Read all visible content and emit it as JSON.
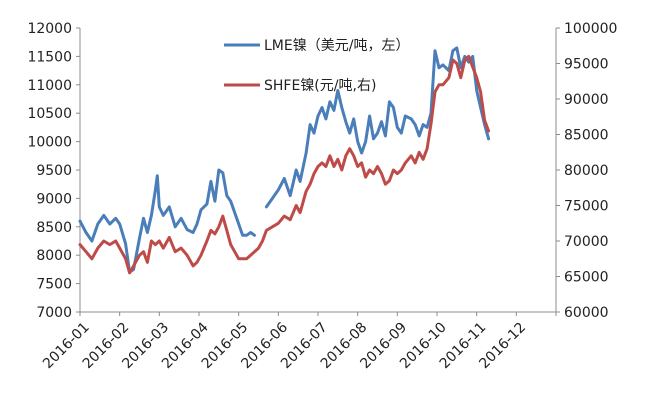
{
  "chart_data": {
    "type": "line",
    "title": "",
    "grid": false,
    "legend_placement": "top-center",
    "x_tick_labels": [
      "2016-01",
      "2016-02",
      "2016-03",
      "2016-04",
      "2016-05",
      "2016-06",
      "2016-07",
      "2016-08",
      "2016-09",
      "2016-10",
      "2016-11",
      "2016-12"
    ],
    "y_left": {
      "lim": [
        7000,
        12000
      ],
      "ticks": [
        7000,
        7500,
        8000,
        8500,
        9000,
        9500,
        10000,
        10500,
        11000,
        11500,
        12000
      ]
    },
    "y_right": {
      "lim": [
        60000,
        100000
      ],
      "ticks": [
        60000,
        65000,
        70000,
        75000,
        80000,
        85000,
        90000,
        95000,
        100000
      ]
    },
    "series": [
      {
        "name": "LME镍（美元/吨，左）",
        "axis": "left",
        "color": "#4a7ebb",
        "points": [
          [
            0.0,
            8600
          ],
          [
            0.15,
            8400
          ],
          [
            0.3,
            8250
          ],
          [
            0.45,
            8550
          ],
          [
            0.6,
            8700
          ],
          [
            0.75,
            8550
          ],
          [
            0.9,
            8650
          ],
          [
            1.0,
            8550
          ],
          [
            1.15,
            8200
          ],
          [
            1.25,
            7700
          ],
          [
            1.35,
            7750
          ],
          [
            1.5,
            8300
          ],
          [
            1.6,
            8650
          ],
          [
            1.7,
            8400
          ],
          [
            1.8,
            8700
          ],
          [
            1.9,
            9150
          ],
          [
            1.95,
            9400
          ],
          [
            2.0,
            8850
          ],
          [
            2.1,
            8700
          ],
          [
            2.25,
            8850
          ],
          [
            2.4,
            8500
          ],
          [
            2.55,
            8650
          ],
          [
            2.7,
            8450
          ],
          [
            2.85,
            8400
          ],
          [
            2.95,
            8550
          ],
          [
            3.05,
            8800
          ],
          [
            3.2,
            8900
          ],
          [
            3.3,
            9300
          ],
          [
            3.4,
            8950
          ],
          [
            3.5,
            9500
          ],
          [
            3.6,
            9450
          ],
          [
            3.7,
            9050
          ],
          [
            3.8,
            8950
          ],
          [
            3.9,
            8750
          ],
          [
            4.0,
            8550
          ],
          [
            4.1,
            8350
          ],
          [
            4.2,
            8350
          ],
          [
            4.3,
            8400
          ],
          [
            4.4,
            8350
          ],
          [
            4.7,
            8850
          ],
          [
            4.85,
            9000
          ],
          [
            5.0,
            9150
          ],
          [
            5.15,
            9350
          ],
          [
            5.3,
            9050
          ],
          [
            5.45,
            9500
          ],
          [
            5.55,
            9300
          ],
          [
            5.7,
            9800
          ],
          [
            5.8,
            10300
          ],
          [
            5.9,
            10150
          ],
          [
            6.0,
            10450
          ],
          [
            6.1,
            10600
          ],
          [
            6.2,
            10400
          ],
          [
            6.3,
            10700
          ],
          [
            6.4,
            10550
          ],
          [
            6.5,
            10900
          ],
          [
            6.6,
            10600
          ],
          [
            6.7,
            10350
          ],
          [
            6.8,
            10150
          ],
          [
            6.9,
            10400
          ],
          [
            7.0,
            10000
          ],
          [
            7.1,
            9800
          ],
          [
            7.2,
            10000
          ],
          [
            7.3,
            10450
          ],
          [
            7.4,
            10050
          ],
          [
            7.5,
            10150
          ],
          [
            7.6,
            10350
          ],
          [
            7.7,
            10100
          ],
          [
            7.8,
            10700
          ],
          [
            7.9,
            10600
          ],
          [
            8.0,
            10250
          ],
          [
            8.1,
            10150
          ],
          [
            8.2,
            10450
          ],
          [
            8.35,
            10400
          ],
          [
            8.45,
            10300
          ],
          [
            8.55,
            10100
          ],
          [
            8.65,
            10300
          ],
          [
            8.75,
            10250
          ],
          [
            8.85,
            10500
          ],
          [
            8.95,
            11600
          ],
          [
            9.05,
            11300
          ],
          [
            9.15,
            11350
          ],
          [
            9.3,
            11250
          ],
          [
            9.4,
            11600
          ],
          [
            9.5,
            11650
          ],
          [
            9.6,
            11300
          ],
          [
            9.7,
            11500
          ],
          [
            9.8,
            11400
          ],
          [
            9.9,
            11500
          ],
          [
            10.0,
            10900
          ],
          [
            10.1,
            10600
          ],
          [
            10.2,
            10300
          ],
          [
            10.3,
            10050
          ]
        ]
      },
      {
        "name": "SHFE镍(元/吨,右)",
        "axis": "right",
        "color": "#be4b48",
        "points": [
          [
            0.0,
            69500
          ],
          [
            0.15,
            68500
          ],
          [
            0.3,
            67500
          ],
          [
            0.45,
            69000
          ],
          [
            0.6,
            70000
          ],
          [
            0.75,
            69500
          ],
          [
            0.9,
            70000
          ],
          [
            1.0,
            69000
          ],
          [
            1.15,
            67500
          ],
          [
            1.25,
            65500
          ],
          [
            1.35,
            66500
          ],
          [
            1.5,
            68000
          ],
          [
            1.6,
            68500
          ],
          [
            1.7,
            67000
          ],
          [
            1.8,
            70000
          ],
          [
            1.9,
            69500
          ],
          [
            2.0,
            70000
          ],
          [
            2.1,
            69000
          ],
          [
            2.25,
            70500
          ],
          [
            2.4,
            68500
          ],
          [
            2.55,
            69000
          ],
          [
            2.7,
            68000
          ],
          [
            2.85,
            66500
          ],
          [
            2.95,
            67000
          ],
          [
            3.05,
            68000
          ],
          [
            3.2,
            70000
          ],
          [
            3.3,
            71500
          ],
          [
            3.4,
            71000
          ],
          [
            3.5,
            72000
          ],
          [
            3.6,
            73500
          ],
          [
            3.7,
            71500
          ],
          [
            3.8,
            69500
          ],
          [
            3.9,
            68500
          ],
          [
            4.0,
            67500
          ],
          [
            4.1,
            67500
          ],
          [
            4.2,
            67500
          ],
          [
            4.3,
            68000
          ],
          [
            4.4,
            68500
          ],
          [
            4.5,
            69000
          ],
          [
            4.6,
            70000
          ],
          [
            4.7,
            71500
          ],
          [
            4.85,
            72000
          ],
          [
            5.0,
            72500
          ],
          [
            5.15,
            73500
          ],
          [
            5.3,
            73000
          ],
          [
            5.45,
            75000
          ],
          [
            5.55,
            74000
          ],
          [
            5.7,
            77000
          ],
          [
            5.8,
            78000
          ],
          [
            5.9,
            79500
          ],
          [
            6.0,
            80500
          ],
          [
            6.1,
            81000
          ],
          [
            6.2,
            80500
          ],
          [
            6.3,
            82000
          ],
          [
            6.4,
            80500
          ],
          [
            6.5,
            81500
          ],
          [
            6.6,
            80000
          ],
          [
            6.7,
            82000
          ],
          [
            6.8,
            83000
          ],
          [
            6.9,
            82000
          ],
          [
            7.0,
            80500
          ],
          [
            7.1,
            81000
          ],
          [
            7.2,
            79000
          ],
          [
            7.3,
            80000
          ],
          [
            7.4,
            79500
          ],
          [
            7.5,
            80500
          ],
          [
            7.6,
            79500
          ],
          [
            7.7,
            78000
          ],
          [
            7.8,
            78500
          ],
          [
            7.9,
            80000
          ],
          [
            8.0,
            79500
          ],
          [
            8.1,
            80000
          ],
          [
            8.2,
            81000
          ],
          [
            8.35,
            82000
          ],
          [
            8.45,
            81000
          ],
          [
            8.55,
            82500
          ],
          [
            8.65,
            81500
          ],
          [
            8.75,
            83000
          ],
          [
            8.85,
            86500
          ],
          [
            8.95,
            91000
          ],
          [
            9.05,
            92000
          ],
          [
            9.15,
            92000
          ],
          [
            9.3,
            93000
          ],
          [
            9.4,
            95500
          ],
          [
            9.5,
            95000
          ],
          [
            9.6,
            93000
          ],
          [
            9.7,
            95500
          ],
          [
            9.8,
            96000
          ],
          [
            9.9,
            94500
          ],
          [
            10.0,
            93000
          ],
          [
            10.1,
            91000
          ],
          [
            10.2,
            87000
          ],
          [
            10.3,
            85500
          ]
        ]
      }
    ]
  }
}
